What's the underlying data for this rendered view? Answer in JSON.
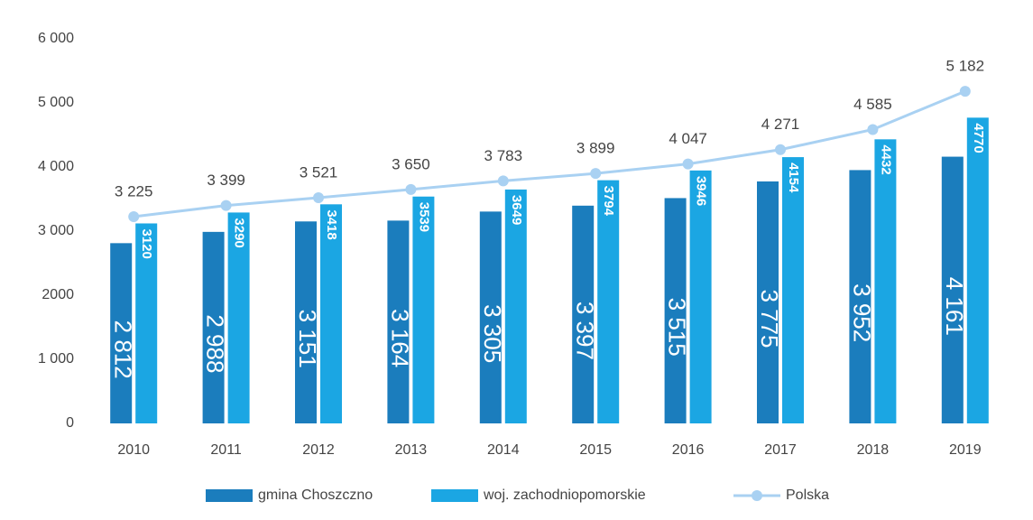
{
  "chart_data": {
    "type": "bar",
    "categories": [
      "2010",
      "2011",
      "2012",
      "2013",
      "2014",
      "2015",
      "2016",
      "2017",
      "2018",
      "2019"
    ],
    "series": [
      {
        "name": "gmina Choszczno",
        "color": "#1b7dbd",
        "values": [
          2812,
          2988,
          3151,
          3164,
          3305,
          3397,
          3515,
          3775,
          3952,
          4161
        ],
        "value_labels": [
          "2 812",
          "2 988",
          "3 151",
          "3 164",
          "3 305",
          "3 397",
          "3 515",
          "3 775",
          "3 952",
          "4 161"
        ]
      },
      {
        "name": "woj. zachodniopomorskie",
        "color": "#1ba6e3",
        "values": [
          3120,
          3290,
          3418,
          3539,
          3649,
          3794,
          3946,
          4154,
          4432,
          4770
        ]
      },
      {
        "name": "Polska",
        "color": "#a9d1f2",
        "type": "line",
        "values": [
          3225,
          3399,
          3521,
          3650,
          3783,
          3899,
          4047,
          4271,
          4585,
          5182
        ],
        "value_labels": [
          "3 225",
          "3 399",
          "3 521",
          "3 650",
          "3 783",
          "3 899",
          "4 047",
          "4 271",
          "4 585",
          "5 182"
        ]
      }
    ],
    "ylim": [
      0,
      6000
    ],
    "yticks": [
      0,
      {
        "value": 1000,
        "label": "1 000"
      },
      {
        "value": 2000,
        "label": "2000"
      },
      {
        "value": 3000,
        "label": "3 000"
      },
      {
        "value": 4000,
        "label": "4 000"
      },
      {
        "value": 5000,
        "label": "5 000"
      },
      {
        "value": 6000,
        "label": "6 000"
      }
    ],
    "grid": false,
    "legend": "bottom"
  }
}
